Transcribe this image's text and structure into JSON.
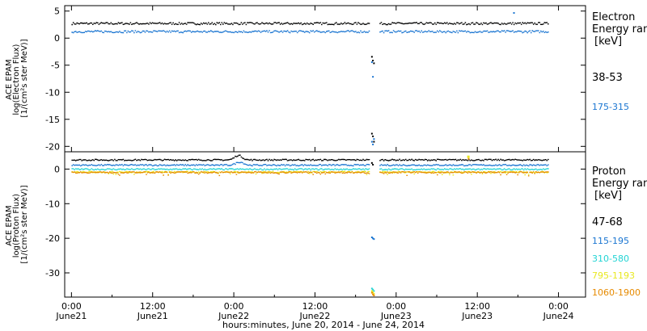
{
  "x_axis": {
    "label": "hours:minutes, June 20, 2014 - June 24, 2014",
    "ticks": [
      {
        "time": "0:00",
        "date": "June21",
        "h": 0
      },
      {
        "time": "12:00",
        "date": "June21",
        "h": 12
      },
      {
        "time": "0:00",
        "date": "June22",
        "h": 24
      },
      {
        "time": "12:00",
        "date": "June22",
        "h": 36
      },
      {
        "time": "0:00",
        "date": "June23",
        "h": 48
      },
      {
        "time": "12:00",
        "date": "June23",
        "h": 60
      },
      {
        "time": "0:00",
        "date": "June24",
        "h": 72
      }
    ],
    "xlim_hours": [
      -1,
      76
    ]
  },
  "panels": [
    {
      "ylabel_lines": [
        "ACE EPAM",
        "log(Electron Flux)",
        "[1/(cm²s ster MeV)]"
      ],
      "legend_title": [
        "Electron",
        "Energy ran",
        "[keV]"
      ]
    },
    {
      "ylabel_lines": [
        "ACE EPAM",
        "log(Proton Flux)",
        "[1/(cm²s ster MeV)]"
      ],
      "legend_title": [
        "Proton",
        "Energy ran",
        "[keV]"
      ]
    }
  ],
  "chart_data": [
    {
      "type": "scatter",
      "panel": "electron",
      "xlabel": "hours:minutes, June 20, 2014 - June 24, 2014",
      "ylabel": "ACE EPAM log(Electron Flux) [1/(cm²s ster MeV)]",
      "ylim": [
        -21,
        6
      ],
      "yticks": [
        5,
        0,
        -5,
        -10,
        -15,
        -20
      ],
      "x_units": "hours after 2014-06-21 00:00",
      "data_gap_hours": [
        44.0,
        45.5
      ],
      "series": [
        {
          "name": "38-53",
          "color": "#000000",
          "level": 2.8,
          "dropout": {
            "x": 44.3,
            "y": [
              -3.3,
              -4.0,
              -4.5,
              -17.5,
              -18.0,
              -19.0
            ]
          }
        },
        {
          "name": "175-315",
          "color": "#1a75d1",
          "level": 1.3,
          "dropout": {
            "x": 44.3,
            "y": [
              -4.3,
              -7.0,
              -18.5,
              -19.0,
              -19.5
            ]
          }
        }
      ]
    },
    {
      "type": "scatter",
      "panel": "proton",
      "xlabel": "hours:minutes, June 20, 2014 - June 24, 2014",
      "ylabel": "ACE EPAM log(Proton Flux) [1/(cm²s ster MeV)]",
      "ylim": [
        -37,
        5
      ],
      "yticks": [
        0,
        -10,
        -20,
        -30
      ],
      "x_units": "hours after 2014-06-21 00:00",
      "data_gap_hours": [
        44.0,
        45.5
      ],
      "series": [
        {
          "name": "47-68",
          "color": "#000000",
          "level": 2.8,
          "dropout": {
            "x": 44.3,
            "y": [
              2.0,
              1.5
            ]
          }
        },
        {
          "name": "115-195",
          "color": "#1a75d1",
          "level": 1.3,
          "dropout": {
            "x": 44.3,
            "y": [
              -19.5,
              -19.8,
              -20.0
            ]
          }
        },
        {
          "name": "310-580",
          "color": "#22d4d4",
          "level": 0.1,
          "dropout": {
            "x": 44.3,
            "y": [
              -34.3,
              -34.6,
              -35.0
            ]
          }
        },
        {
          "name": "795-1193",
          "color": "#e8e820",
          "level": -0.7,
          "dropout": {
            "x": 44.3,
            "y": [
              -35.0,
              -35.4,
              -35.8
            ]
          }
        },
        {
          "name": "1060-1900",
          "color": "#e68a00",
          "level": -0.8,
          "dropout": {
            "x": 44.3,
            "y": [
              -35.5,
              -36.0,
              -36.3
            ]
          }
        }
      ]
    }
  ]
}
